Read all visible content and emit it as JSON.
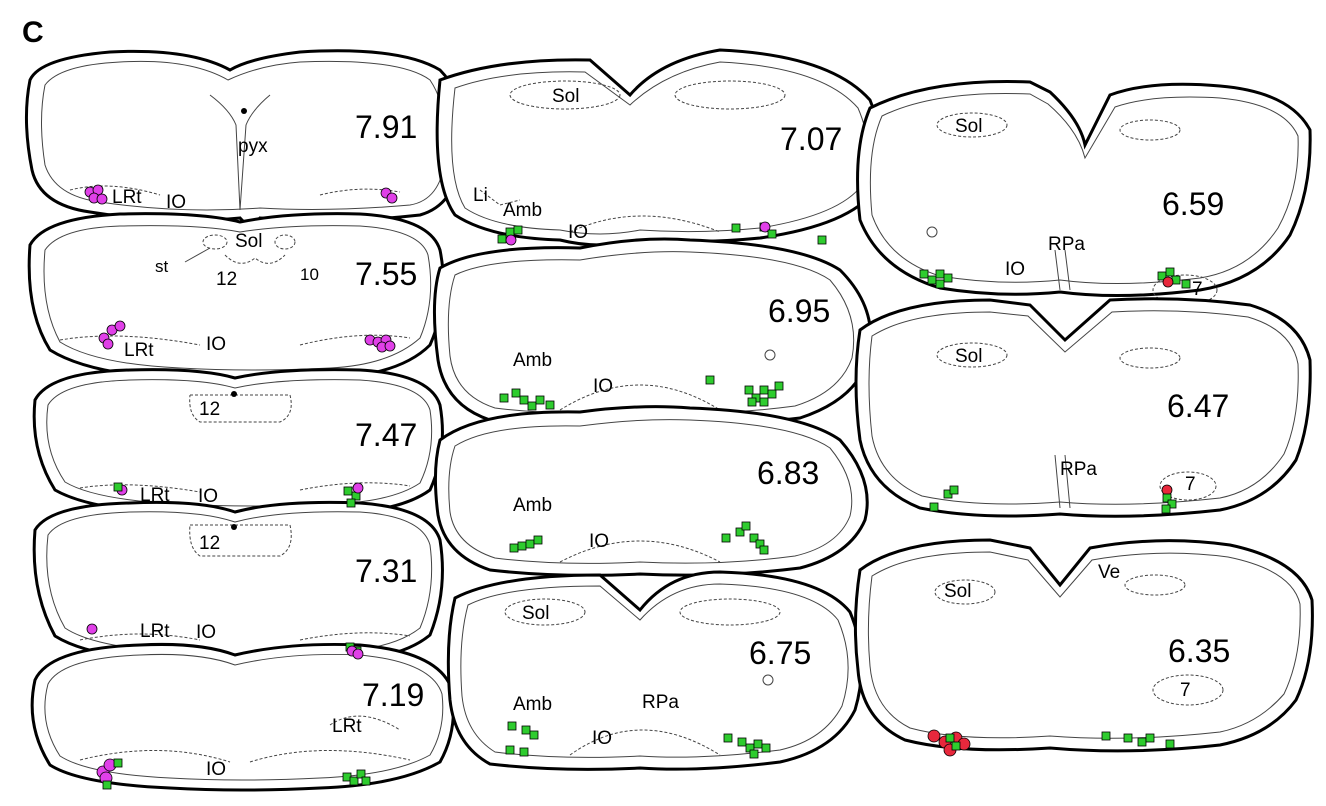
{
  "panel_label": "C",
  "colors": {
    "magenta": "#e040e8",
    "green": "#2ecc2e",
    "red": "#e8283c"
  },
  "sections": [
    {
      "level": "7.91",
      "labels": [
        "pyx",
        "LRt",
        "IO"
      ]
    },
    {
      "level": "7.55",
      "labels": [
        "st",
        "Sol",
        "12",
        "10",
        "LRt",
        "IO"
      ]
    },
    {
      "level": "7.47",
      "labels": [
        "12",
        "LRt",
        "IO"
      ]
    },
    {
      "level": "7.31",
      "labels": [
        "12",
        "LRt",
        "IO"
      ]
    },
    {
      "level": "7.19",
      "labels": [
        "LRt",
        "IO"
      ]
    },
    {
      "level": "7.07",
      "labels": [
        "Sol",
        "Li",
        "Amb",
        "IO"
      ]
    },
    {
      "level": "6.95",
      "labels": [
        "Amb",
        "IO"
      ]
    },
    {
      "level": "6.83",
      "labels": [
        "Amb",
        "IO"
      ]
    },
    {
      "level": "6.75",
      "labels": [
        "Sol",
        "Amb",
        "RPa",
        "IO"
      ]
    },
    {
      "level": "6.59",
      "labels": [
        "Sol",
        "RPa",
        "IO",
        "7"
      ]
    },
    {
      "level": "6.47",
      "labels": [
        "Sol",
        "RPa",
        "7"
      ]
    },
    {
      "level": "6.35",
      "labels": [
        "Sol",
        "Ve",
        "7"
      ]
    }
  ]
}
